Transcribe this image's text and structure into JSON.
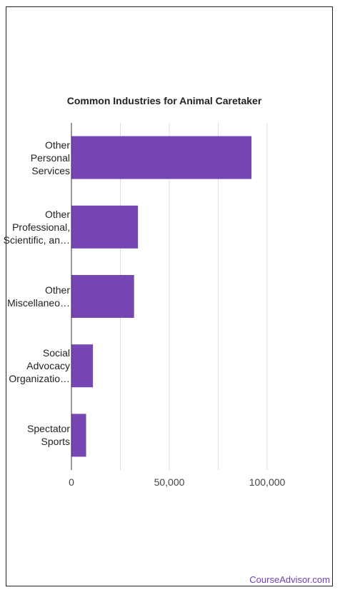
{
  "chart_data": {
    "type": "bar",
    "orientation": "horizontal",
    "title": "Common Industries for Animal Caretaker",
    "categories": [
      [
        "Other",
        "Personal",
        "Services"
      ],
      [
        "Other",
        "Professional,",
        "Scientific, an…"
      ],
      [
        "Other",
        "Miscellaneo…"
      ],
      [
        "Social",
        "Advocacy",
        "Organizatio…"
      ],
      [
        "Spectator",
        "Sports"
      ]
    ],
    "values": [
      92000,
      34000,
      32000,
      11000,
      7500
    ],
    "xlim": [
      0,
      110000
    ],
    "xticks": [
      0,
      50000,
      100000
    ],
    "xtick_labels": [
      "0",
      "50,000",
      "100,000"
    ],
    "grid": true,
    "bar_color": "#7546b4"
  },
  "footer": {
    "brand": "CourseAdvisor.com",
    "brand_color": "#6f3fb0"
  }
}
